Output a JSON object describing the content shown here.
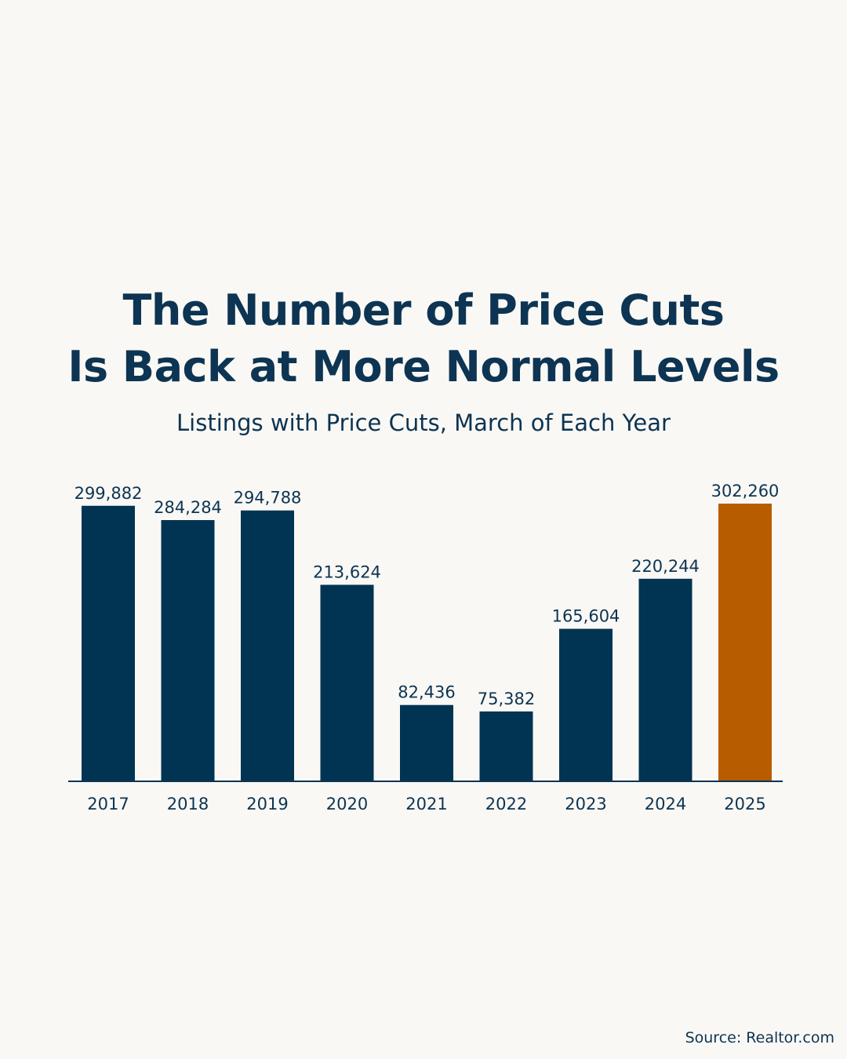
{
  "colors": {
    "background": "#f9f8f5",
    "bar_default": "#013452",
    "bar_highlight": "#b85c00",
    "text": "#0d3452",
    "axis": "#0d3452"
  },
  "source_label": "Source: Realtor.com",
  "chart_data": {
    "type": "bar",
    "title": "The Number of Price Cuts Is Back at More Normal Levels",
    "title_lines": [
      "The Number of Price Cuts",
      "Is Back at More Normal Levels"
    ],
    "subtitle": "Listings with Price Cuts, March of Each Year",
    "xlabel": "",
    "ylabel": "",
    "ylim": [
      0,
      302260
    ],
    "grid": false,
    "legend": "none",
    "categories": [
      "2017",
      "2018",
      "2019",
      "2020",
      "2021",
      "2022",
      "2023",
      "2024",
      "2025"
    ],
    "values": [
      299882,
      284284,
      294788,
      213624,
      82436,
      75382,
      165604,
      220244,
      302260
    ],
    "data_labels": [
      "299,882",
      "284,284",
      "294,788",
      "213,624",
      "82,436",
      "75,382",
      "165,604",
      "220,244",
      "302,260"
    ],
    "highlight": [
      "2025"
    ]
  }
}
